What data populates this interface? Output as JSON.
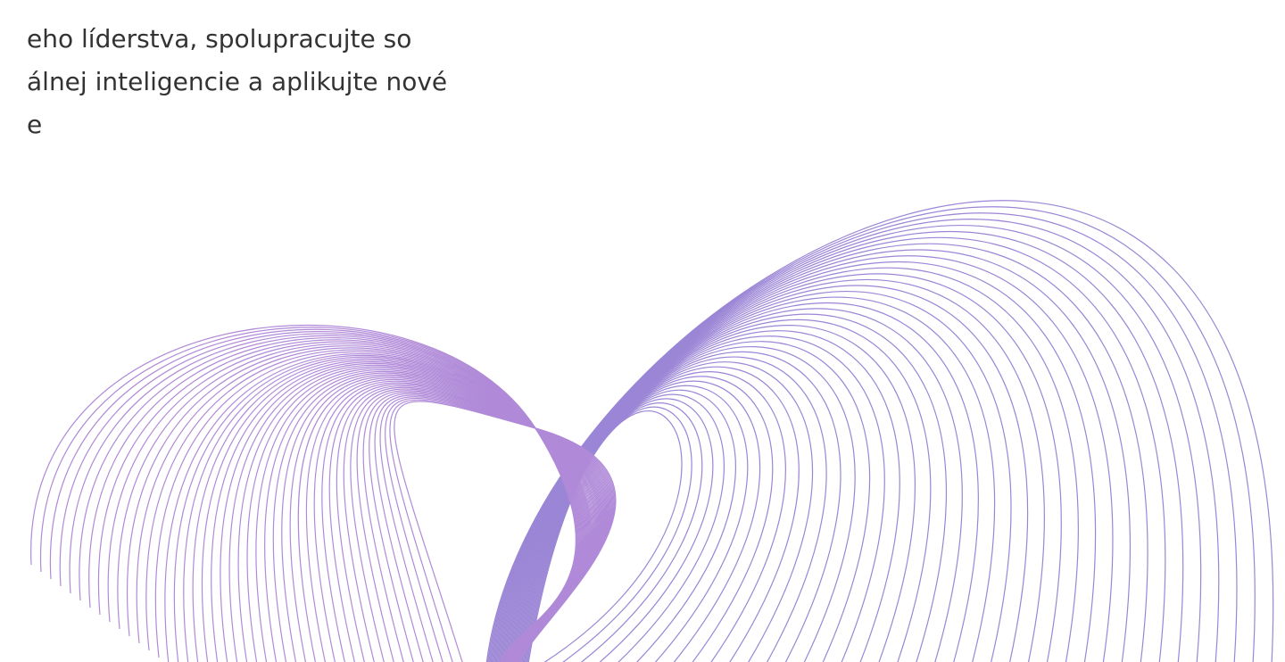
{
  "body": {
    "lines": [
      "eho líderstva, spolupracujte so",
      "álnej inteligencie a aplikujte nové",
      "e"
    ]
  }
}
